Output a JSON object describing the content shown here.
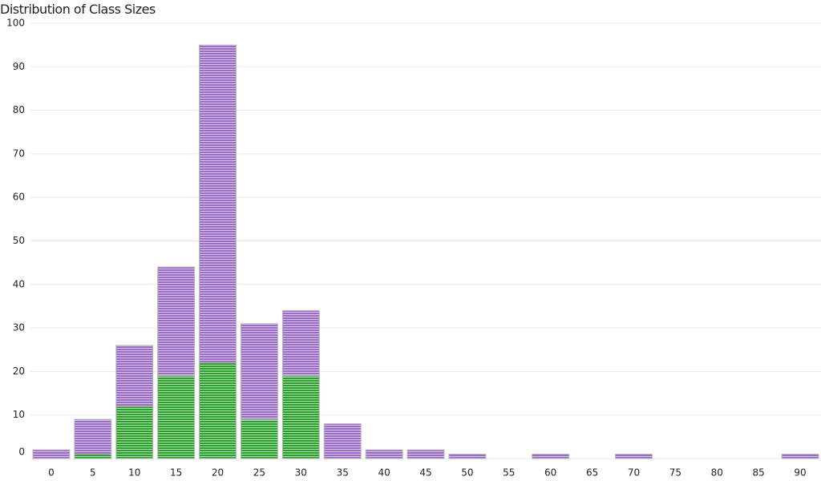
{
  "chart_data": {
    "type": "bar",
    "title": "Distribution of Class Sizes",
    "categories": [
      "0",
      "5",
      "10",
      "15",
      "20",
      "25",
      "30",
      "35",
      "40",
      "45",
      "50",
      "55",
      "60",
      "65",
      "70",
      "75",
      "80",
      "85",
      "90"
    ],
    "series": [
      {
        "color": "#2ca02c",
        "values": [
          0,
          1,
          12,
          19,
          22,
          9,
          19,
          0,
          0,
          0,
          0,
          0,
          0,
          0,
          0,
          0,
          0,
          0,
          0
        ]
      },
      {
        "color": "#9b6dc6",
        "values": [
          2,
          8,
          14,
          25,
          73,
          22,
          15,
          8,
          2,
          2,
          1,
          0,
          1,
          0,
          1,
          0,
          0,
          0,
          1
        ]
      }
    ],
    "stacked": true,
    "bar_style": "horizontal-striped",
    "ylim": [
      0,
      100
    ],
    "yticks": [
      0,
      10,
      20,
      30,
      40,
      50,
      60,
      70,
      80,
      90,
      100
    ],
    "grid": true,
    "xlabel": "",
    "ylabel": ""
  }
}
